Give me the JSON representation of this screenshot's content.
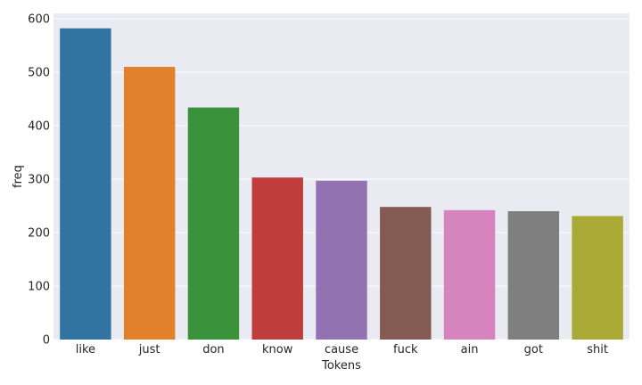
{
  "chart_data": {
    "type": "bar",
    "title": "",
    "xlabel": "Tokens",
    "ylabel": "freq",
    "categories": [
      "like",
      "just",
      "don",
      "know",
      "cause",
      "fuck",
      "ain",
      "got",
      "shit"
    ],
    "values": [
      582,
      510,
      434,
      303,
      297,
      248,
      242,
      240,
      231
    ],
    "colors": [
      "#3274a1",
      "#e1812c",
      "#3a923a",
      "#c03d3e",
      "#9372b2",
      "#845b53",
      "#d684bd",
      "#7f7f7f",
      "#a9aa35"
    ],
    "ylim": [
      0,
      610
    ],
    "yticks": [
      0,
      100,
      200,
      300,
      400,
      500,
      600
    ],
    "grid": true,
    "background": "#eaeaf2",
    "grid_color": "#ffffff"
  }
}
